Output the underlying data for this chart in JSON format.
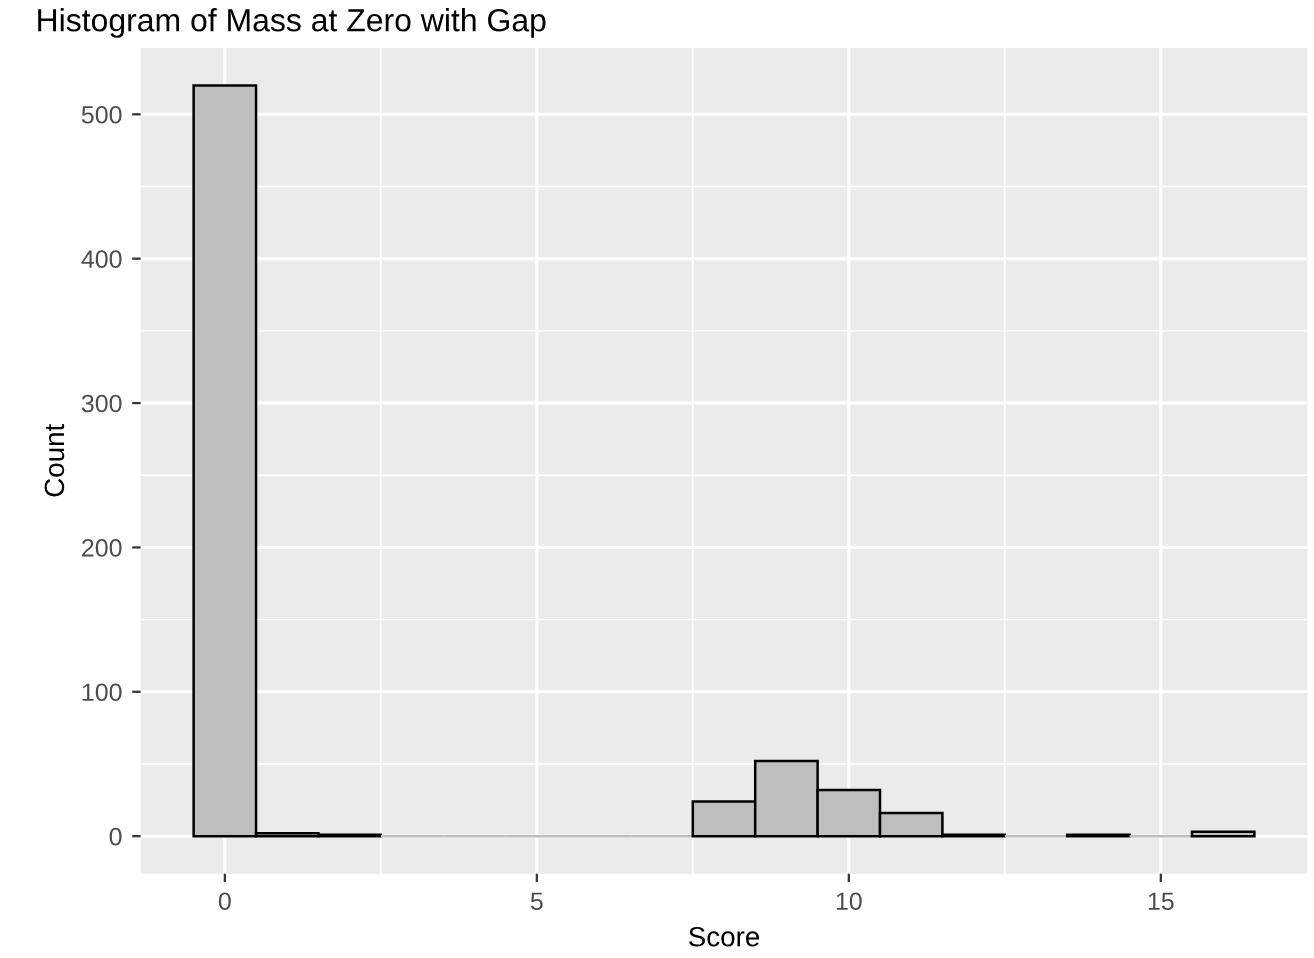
{
  "chart_data": {
    "type": "histogram",
    "title": "Histogram of Mass at Zero with Gap",
    "xlabel": "Score",
    "ylabel": "Count",
    "bins": [
      -0.5,
      0.5,
      1.5,
      2.5,
      3.5,
      4.5,
      5.5,
      6.5,
      7.5,
      8.5,
      9.5,
      10.5,
      11.5,
      12.5,
      13.5,
      14.5,
      15.5,
      16.5
    ],
    "values": [
      520,
      2,
      1,
      0,
      0,
      0,
      0,
      0,
      24,
      52,
      32,
      16,
      1,
      0,
      1,
      0,
      3
    ],
    "color": "#bebebe",
    "xlim": [
      -1.35,
      17.35
    ],
    "ylim": [
      -26,
      546
    ],
    "xticks": [
      0,
      5,
      10,
      15
    ],
    "yticks": [
      0,
      100,
      200,
      300,
      400,
      500
    ],
    "grid": true
  }
}
